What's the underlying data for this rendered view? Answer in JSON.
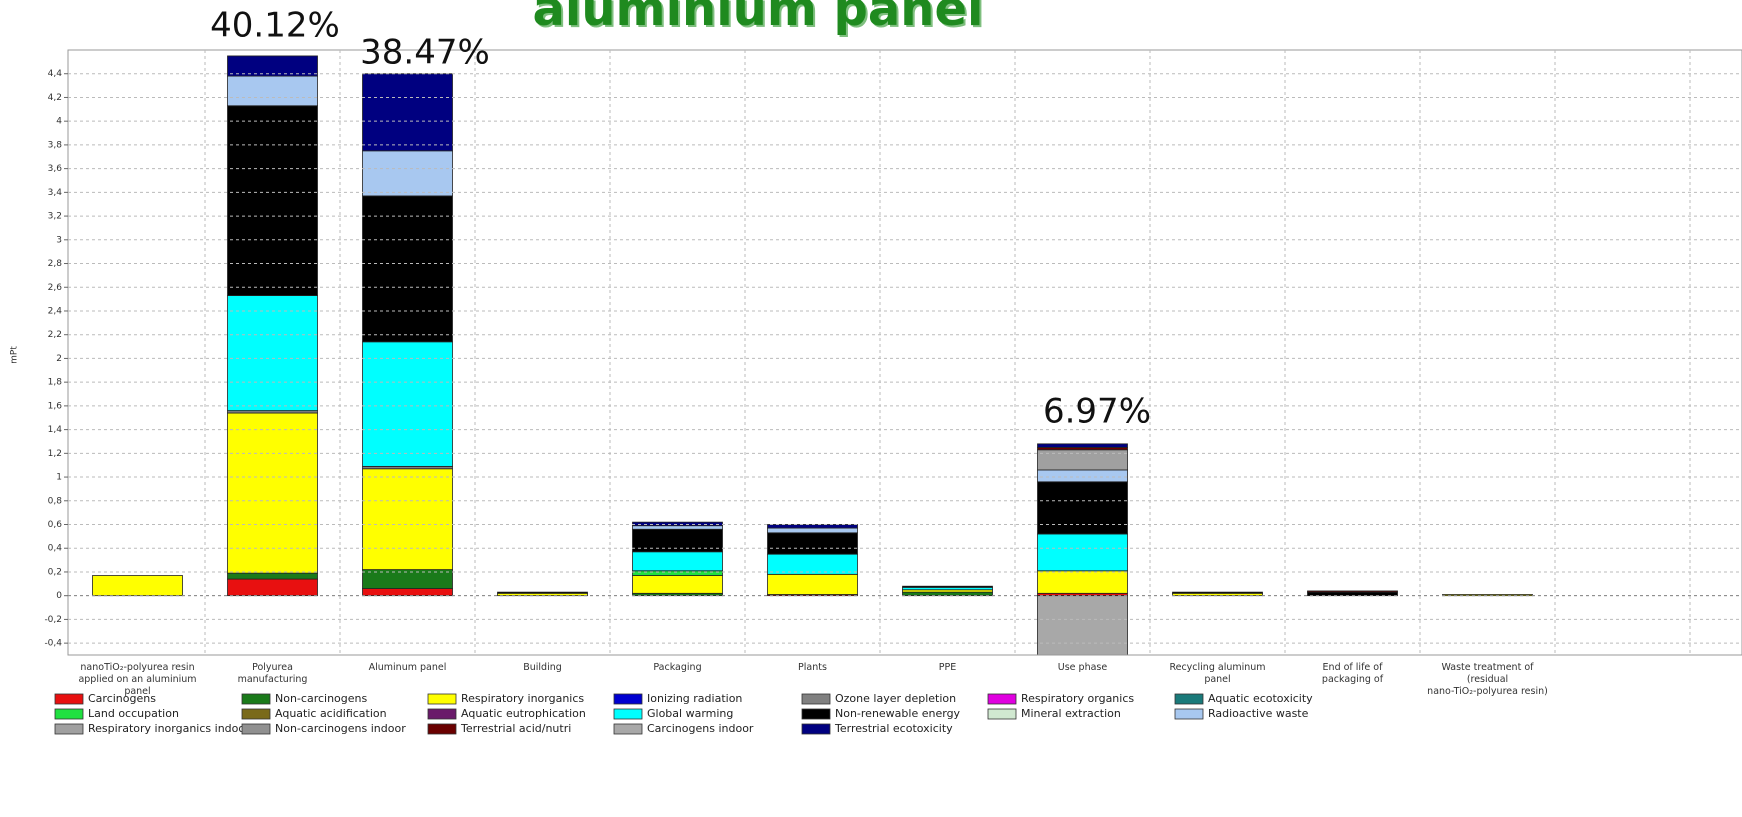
{
  "chart_data": {
    "type": "stacked_bar",
    "title": "aluminium panel",
    "y_label": "mPt",
    "annotations": [
      "40.12%",
      "38.47%",
      "6.97%"
    ],
    "categories": [
      "nanoTiO₂-polyurea resin\napplied on an aluminium panel",
      "Polyurea\nmanufacturing",
      "Aluminum panel",
      "Building",
      "Packaging",
      "Plants",
      "PPE",
      "Use phase",
      "Recycling aluminum\npanel",
      "End of life of\npackaging of",
      "Waste treatment of (residual\nnano-TiO₂-polyurea resin)"
    ],
    "ylim": [
      -0.5,
      4.6
    ],
    "yticks": [
      {
        "value": -0.4,
        "label": "-0,4"
      },
      {
        "value": -0.2,
        "label": "-0,2"
      },
      0,
      {
        "value": 0.2,
        "label": "0,2"
      },
      {
        "value": 0.4,
        "label": "0,4"
      },
      {
        "value": 0.6,
        "label": "0,6"
      },
      {
        "value": 0.8,
        "label": "0,8"
      },
      1,
      {
        "value": 1.2,
        "label": "1,2"
      },
      {
        "value": 1.4,
        "label": "1,4"
      },
      {
        "value": 1.6,
        "label": "1,6"
      },
      {
        "value": 1.8,
        "label": "1,8"
      },
      2,
      {
        "value": 2.2,
        "label": "2,2"
      },
      {
        "value": 2.4,
        "label": "2,4"
      },
      {
        "value": 2.6,
        "label": "2,6"
      },
      {
        "value": 2.8,
        "label": "2,8"
      },
      3,
      {
        "value": 3.2,
        "label": "3,2"
      },
      {
        "value": 3.4,
        "label": "3,4"
      },
      {
        "value": 3.6,
        "label": "3,6"
      },
      {
        "value": 3.8,
        "label": "3,8"
      },
      4,
      {
        "value": 4.2,
        "label": "4,2"
      },
      {
        "value": 4.4,
        "label": "4,4"
      }
    ],
    "grid": true,
    "series": [
      {
        "name": "Carcinogens",
        "color": "#e81010",
        "values": [
          0,
          0.14,
          0.06,
          0,
          0,
          0.01,
          0,
          0.02,
          0,
          0,
          0
        ]
      },
      {
        "name": "Non-carcinogens",
        "color": "#1a7a1a",
        "values": [
          0,
          0.05,
          0.16,
          0,
          0.02,
          0,
          0.03,
          0,
          0,
          0,
          0
        ]
      },
      {
        "name": "Respiratory inorganics",
        "color": "#ffff00",
        "values": [
          0.17,
          1.35,
          0.85,
          0.02,
          0.15,
          0.17,
          0.02,
          0.19,
          0.02,
          0,
          0.01
        ]
      },
      {
        "name": "Ionizing radiation",
        "color": "#0000d0",
        "values": [
          0,
          0,
          0,
          0,
          0,
          0,
          0,
          0,
          0,
          0,
          0
        ]
      },
      {
        "name": "Ozone layer depletion",
        "color": "#808080",
        "values": [
          0,
          0.02,
          0.02,
          0,
          0,
          0,
          0,
          0,
          0,
          0,
          0
        ]
      },
      {
        "name": "Respiratory organics",
        "color": "#e000e0",
        "values": [
          0,
          0,
          0,
          0,
          0,
          0,
          0,
          0,
          0,
          0,
          0
        ]
      },
      {
        "name": "Aquatic ecotoxicity",
        "color": "#1a7a7a",
        "values": [
          0,
          0,
          0,
          0,
          0,
          0,
          0,
          0,
          0,
          0,
          0
        ]
      },
      {
        "name": "Land occupation",
        "color": "#20e040",
        "values": [
          0,
          0,
          0,
          0,
          0.04,
          0,
          0,
          0,
          0,
          0,
          0
        ]
      },
      {
        "name": "Aquatic acidification",
        "color": "#7a6a1a",
        "values": [
          0,
          0,
          0,
          0,
          0,
          0,
          0,
          0,
          0,
          0,
          0
        ]
      },
      {
        "name": "Aquatic eutrophication",
        "color": "#6a1a6a",
        "values": [
          0,
          0,
          0,
          0,
          0,
          0,
          0,
          0,
          0,
          0,
          0
        ]
      },
      {
        "name": "Global warming",
        "color": "#00ffff",
        "values": [
          0,
          0.97,
          1.05,
          0,
          0.16,
          0.17,
          0.02,
          0.31,
          0,
          0,
          0
        ]
      },
      {
        "name": "Non-renewable energy",
        "color": "#000000",
        "values": [
          0,
          1.6,
          1.23,
          0.01,
          0.19,
          0.18,
          0.01,
          0.44,
          0.01,
          0.03,
          0
        ]
      },
      {
        "name": "Mineral extraction",
        "color": "#d0e8d0",
        "values": [
          0,
          0,
          0,
          0,
          0,
          0,
          0,
          0,
          0,
          0,
          0
        ]
      },
      {
        "name": "Radioactive waste",
        "color": "#a8c8f0",
        "values": [
          0,
          0.25,
          0.38,
          0,
          0.03,
          0.04,
          0,
          0.1,
          0,
          0,
          0
        ]
      },
      {
        "name": "Respiratory inorganics indoor",
        "color": "#a0a0a0",
        "values": [
          0,
          0,
          0,
          0,
          0,
          0,
          0,
          0.17,
          0,
          0,
          0
        ]
      },
      {
        "name": "Non-carcinogens indoor",
        "color": "#909090",
        "values": [
          0,
          0,
          0,
          0,
          0,
          0,
          0,
          0,
          0,
          0,
          0
        ]
      },
      {
        "name": "Terrestrial acid/nutri",
        "color": "#6a0000",
        "values": [
          0,
          0,
          0,
          0,
          0,
          0,
          0,
          0.02,
          0,
          0.01,
          0
        ]
      },
      {
        "name": "Carcinogens indoor",
        "color": "#a8a8a8",
        "values": [
          0,
          0,
          0,
          0,
          0,
          0,
          0,
          -0.5,
          0,
          0,
          0
        ]
      },
      {
        "name": "Terrestrial ecotoxicity",
        "color": "#000080",
        "values": [
          0,
          0.17,
          0.65,
          0,
          0.03,
          0.03,
          0,
          0.03,
          0,
          0,
          0
        ]
      }
    ]
  }
}
